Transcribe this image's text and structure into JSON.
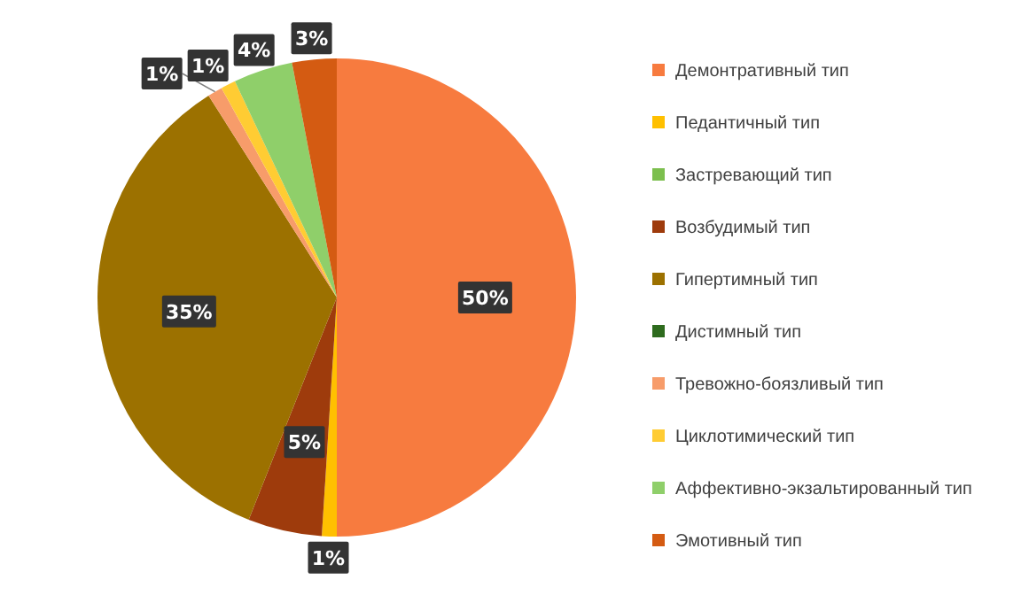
{
  "chart_data": {
    "type": "pie",
    "categories": [
      "Демонтративный тип",
      "Педантичный тип",
      "Застревающий тип",
      "Возбудимый тип",
      "Гипертимный тип",
      "Дистимный тип",
      "Тревожно-боязливый тип",
      "Циклотимический тип",
      "Аффективно-экзальтированный тип",
      "Эмотивный тип"
    ],
    "values": [
      50,
      1,
      0,
      5,
      35,
      0,
      1,
      1,
      4,
      3
    ],
    "colors": [
      "#f77b3f",
      "#ffc000",
      "#7cbf4e",
      "#9e3b0c",
      "#9c7100",
      "#2e6b1e",
      "#f79c6a",
      "#ffcc33",
      "#8fcf6a",
      "#d45b12"
    ],
    "value_labels": [
      "50%",
      "1%",
      null,
      "5%",
      "35%",
      null,
      "1%",
      "1%",
      "4%",
      "3%"
    ],
    "legend": "right"
  }
}
